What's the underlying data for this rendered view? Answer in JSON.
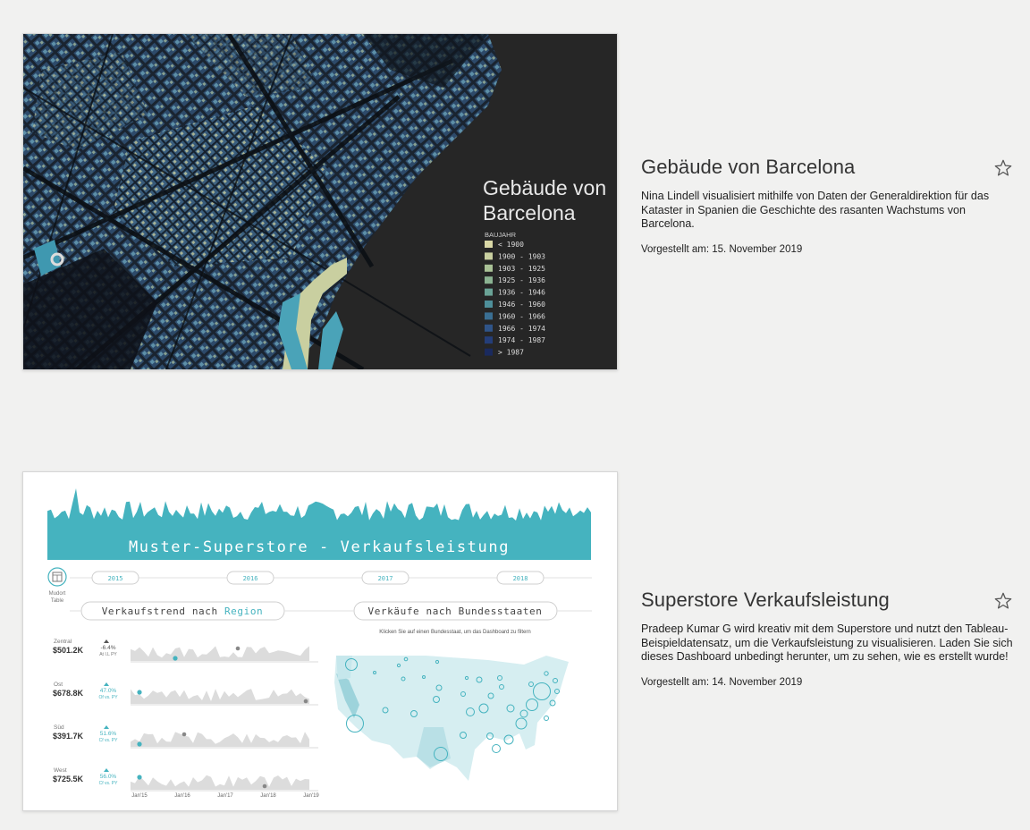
{
  "viz1": {
    "title": "Gebäude von Barcelona",
    "description": "Nina Lindell visualisiert mithilfe von Daten der Generaldirektion für das Kataster in Spanien die Geschichte des rasanten Wachstums von Barcelona.",
    "date": "Vorgestellt am: 15. November 2019",
    "thumbnail": {
      "title_line1": "Gebäude von",
      "title_line2": "Barcelona",
      "legend_title": "BAUJAHR",
      "legend": [
        {
          "label": "< 1900",
          "color": "#d9d7a6"
        },
        {
          "label": "1900 - 1903",
          "color": "#c9d0a0"
        },
        {
          "label": "1903 - 1925",
          "color": "#a9c296"
        },
        {
          "label": "1925 - 1936",
          "color": "#8bb392"
        },
        {
          "label": "1936 - 1946",
          "color": "#6aa396"
        },
        {
          "label": "1946 - 1960",
          "color": "#4e8f9a"
        },
        {
          "label": "1960 - 1966",
          "color": "#3a6f93"
        },
        {
          "label": "1966 - 1974",
          "color": "#2f5488"
        },
        {
          "label": "1974 - 1987",
          "color": "#243e79"
        },
        {
          "label": "> 1987",
          "color": "#1a2a5e"
        }
      ]
    }
  },
  "viz2": {
    "title": "Superstore Verkaufsleistung",
    "description": "Pradeep Kumar G wird kreativ mit dem Superstore und nutzt den Tableau-Beispieldatensatz, um die Verkaufsleistung zu visualisieren. Laden Sie sich dieses Dashboard unbedingt herunter, um zu sehen, wie es erstellt wurde!",
    "date": "Vorgestellt am: 14. November 2019",
    "thumbnail": {
      "banner": "Muster-Superstore - Verkaufsleistung",
      "icon_label_1": "Mudort",
      "icon_label_2": "Table",
      "years": [
        "2015",
        "2016",
        "2017",
        "2018"
      ],
      "section_left_prefix": "Verkaufstrend nach ",
      "section_left_highlight": "Region",
      "section_right": "Verkäufe nach Bundesstaaten",
      "map_hint": "Klicken Sie auf einen Bundesstaat, um das Dashboard zu filtern",
      "regions": [
        {
          "name": "Zentral",
          "value": "$501.2K",
          "delta": "-6.4%",
          "delta_sub": "At I.L PY"
        },
        {
          "name": "Ost",
          "value": "$678.8K",
          "delta": "47.0%",
          "delta_sub": "Of vs. PY"
        },
        {
          "name": "Süd",
          "value": "$391.7K",
          "delta": "51.6%",
          "delta_sub": "Cf vs. PY"
        },
        {
          "name": "West",
          "value": "$725.5K",
          "delta": "56.0%",
          "delta_sub": "Cf vs. PY"
        }
      ],
      "axis": [
        "Jan'15",
        "Jan'16",
        "Jan'17",
        "Jan'18",
        "Jan'19"
      ]
    }
  },
  "colors": {
    "teal": "#45b3bf",
    "barcelona_bg": "#262626"
  },
  "icons": {
    "favorite": "star-outline-icon",
    "dashboard": "calendar-grid-icon"
  }
}
